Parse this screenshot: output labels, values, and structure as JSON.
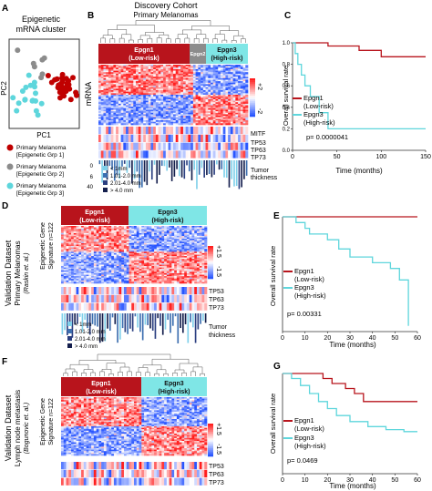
{
  "panels": {
    "A": {
      "letter": "A",
      "title_line1": "Epigenetic",
      "title_line2": "mRNA cluster",
      "axis_y": "PC2",
      "axis_x": "PC1",
      "legend": [
        {
          "line1": "Primary Melanoma",
          "line2": "[Epigenetic Grp 1]",
          "color": "#c00000"
        },
        {
          "line1": "Primary Melanoma",
          "line2": "[Epigenetic Grp 2]",
          "color": "#8c8c8c"
        },
        {
          "line1": "Primary Melanoma",
          "line2": "[Epigenetic Grp 3]",
          "color": "#5ed6dc"
        }
      ]
    },
    "B": {
      "letter": "B",
      "title": "Discovery Cohort",
      "subtitle": "Primary Melanomas",
      "groups": [
        {
          "line1": "Epgn1",
          "line2": "(Low-risk)",
          "color": "#b8141c"
        },
        {
          "line1": "Epgn2",
          "line2": "",
          "color": "#8c8c8c"
        },
        {
          "line1": "Epgn3",
          "line2": "(High-risk)",
          "color": "#7fe6e6"
        }
      ],
      "ylabel": "mRNA",
      "scale_top": "+2",
      "scale_bottom": "-2",
      "row_labels": [
        "MITF",
        "TP53",
        "TP63",
        "TP73"
      ],
      "thickness_axis": [
        "0",
        "6",
        "40"
      ],
      "thickness_label_line1": "Tumor",
      "thickness_label_line2": "thickness",
      "thickness_legend": [
        {
          "label": "< 1mm",
          "color": "#7fd0ea"
        },
        {
          "label": "1.01-2.0 mm",
          "color": "#3d6fb0"
        },
        {
          "label": "2.01-4.0 mm",
          "color": "#2b3f80"
        },
        {
          "label": "> 4.0 mm",
          "color": "#141f4d"
        }
      ]
    },
    "C": {
      "letter": "C",
      "ylabel": "Overall survival rate",
      "xlabel": "Time (months)",
      "yticks": [
        "0.0",
        "0.2",
        "0.4",
        "0.6",
        "0.8",
        "1.0"
      ],
      "xticks": [
        "0",
        "50",
        "100",
        "150"
      ],
      "legend": [
        {
          "line1": "Epgn1",
          "line2": "(Low-risk)",
          "color": "#b8141c"
        },
        {
          "line1": "Epgn3",
          "line2": "(High-risk)",
          "color": "#5ed6dc"
        }
      ],
      "pvalue": "p= 0.0000041"
    },
    "D": {
      "letter": "D",
      "side_title_line1": "Validation Dataset",
      "side_title_line2": "Primary Melanomas",
      "side_title_line3": "(Raskin et. al.)",
      "ylabel_line1": "Epigenetic Gene",
      "ylabel_line2": "Signature n=122",
      "groups": [
        {
          "line1": "Epgn1",
          "line2": "(Low-risk)",
          "color": "#b8141c"
        },
        {
          "line1": "Epgn3",
          "line2": "(High-risk)",
          "color": "#7fe6e6"
        }
      ],
      "scale_top": "+1.5",
      "scale_bottom": "-1.5",
      "row_labels": [
        "TP53",
        "TP63",
        "TP73"
      ],
      "thickness_label_line1": "Tumor",
      "thickness_label_line2": "thickness",
      "thickness_legend": [
        {
          "label": "< 1mm",
          "color": "#7fd0ea"
        },
        {
          "label": "1.01-2.0 mm",
          "color": "#3d6fb0"
        },
        {
          "label": "2.01-4.0 mm",
          "color": "#2b3f80"
        },
        {
          "label": "> 4.0 mm",
          "color": "#141f4d"
        }
      ]
    },
    "E": {
      "letter": "E",
      "ylabel": "Overall survival rate",
      "xlabel": "Time (months)",
      "xticks": [
        "0",
        "10",
        "20",
        "30",
        "40",
        "50",
        "60"
      ],
      "legend": [
        {
          "line1": "Epgn1",
          "line2": "(Low-risk)",
          "color": "#b8141c"
        },
        {
          "line1": "Epgn3",
          "line2": "(High-risk)",
          "color": "#5ed6dc"
        }
      ],
      "pvalue": "p= 0.00331"
    },
    "F": {
      "letter": "F",
      "side_title_line1": "Validation Dataset",
      "side_title_line2": "Lymph node metastasis",
      "side_title_line3": "(Bogunovic et. al.)",
      "ylabel_line1": "Epigenetic Gene",
      "ylabel_line2": "Signature n=122",
      "groups": [
        {
          "line1": "Epgn1",
          "line2": "(Low-risk)",
          "color": "#b8141c"
        },
        {
          "line1": "Epgn3",
          "line2": "(High-risk)",
          "color": "#7fe6e6"
        }
      ],
      "scale_top": "+1.5",
      "scale_bottom": "-1.5",
      "row_labels": [
        "TP53",
        "TP63",
        "TP73"
      ]
    },
    "G": {
      "letter": "G",
      "ylabel": "Overall survival rate",
      "xlabel": "Time (months)",
      "xticks": [
        "0",
        "10",
        "20",
        "30",
        "40",
        "50",
        "60"
      ],
      "legend": [
        {
          "line1": "Epgn1",
          "line2": "(Low-risk)",
          "color": "#b8141c"
        },
        {
          "line1": "Epgn3",
          "line2": "(High-risk)",
          "color": "#5ed6dc"
        }
      ],
      "pvalue": "p= 0.0469"
    }
  },
  "chart_data": [
    {
      "type": "line",
      "panel": "C",
      "xlabel": "Time (months)",
      "ylabel": "Overall survival rate",
      "xlim": [
        0,
        150
      ],
      "ylim": [
        0,
        1.0
      ],
      "series": [
        {
          "name": "Epgn1 (Low-risk)",
          "color": "#b8141c",
          "x": [
            0,
            40,
            75,
            100,
            150
          ],
          "y": [
            1.0,
            0.97,
            0.93,
            0.87,
            0.87
          ]
        },
        {
          "name": "Epgn3 (High-risk)",
          "color": "#5ed6dc",
          "x": [
            0,
            3,
            6,
            10,
            14,
            20,
            30,
            40,
            80,
            150
          ],
          "y": [
            1.0,
            0.9,
            0.8,
            0.7,
            0.6,
            0.5,
            0.35,
            0.2,
            0.2,
            0.2
          ]
        }
      ]
    },
    {
      "type": "line",
      "panel": "E",
      "xlabel": "Time (months)",
      "ylabel": "Overall survival rate",
      "xlim": [
        0,
        60
      ],
      "ylim": [
        0,
        1.0
      ],
      "series": [
        {
          "name": "Epgn1 (Low-risk)",
          "color": "#b8141c",
          "x": [
            0,
            60
          ],
          "y": [
            1.0,
            1.0
          ]
        },
        {
          "name": "Epgn3 (High-risk)",
          "color": "#5ed6dc",
          "x": [
            0,
            6,
            10,
            12,
            20,
            25,
            30,
            40,
            48,
            52,
            55,
            56
          ],
          "y": [
            1.0,
            0.95,
            0.9,
            0.85,
            0.8,
            0.72,
            0.65,
            0.6,
            0.55,
            0.45,
            0.45,
            0.05
          ]
        }
      ]
    },
    {
      "type": "line",
      "panel": "G",
      "xlabel": "Time (months)",
      "ylabel": "Overall survival rate",
      "xlim": [
        0,
        60
      ],
      "ylim": [
        0,
        1.0
      ],
      "series": [
        {
          "name": "Epgn1 (Low-risk)",
          "color": "#b8141c",
          "x": [
            0,
            18,
            22,
            28,
            32,
            36,
            50,
            60
          ],
          "y": [
            1.0,
            0.95,
            0.9,
            0.85,
            0.8,
            0.72,
            0.72,
            0.72
          ]
        },
        {
          "name": "Epgn3 (High-risk)",
          "color": "#5ed6dc",
          "x": [
            0,
            4,
            8,
            12,
            16,
            20,
            24,
            30,
            38,
            46,
            54,
            60
          ],
          "y": [
            1.0,
            0.95,
            0.88,
            0.8,
            0.72,
            0.65,
            0.58,
            0.52,
            0.47,
            0.44,
            0.42,
            0.42
          ]
        }
      ]
    }
  ]
}
